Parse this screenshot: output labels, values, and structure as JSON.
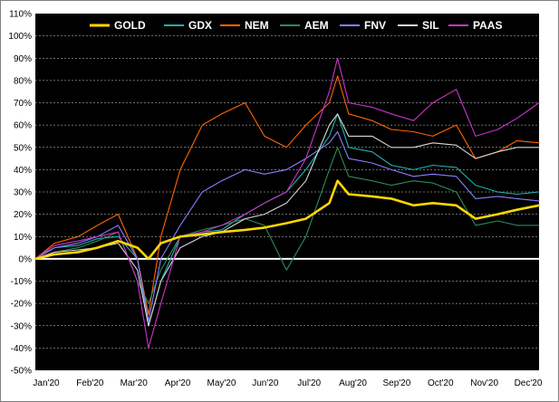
{
  "chart_data": {
    "type": "line",
    "title": "",
    "xlabel": "",
    "ylabel": "",
    "ylim": [
      -50,
      110
    ],
    "y_unit": "%",
    "y_ticks": [
      -50,
      -40,
      -30,
      -20,
      -10,
      0,
      10,
      20,
      30,
      40,
      50,
      60,
      70,
      80,
      90,
      100,
      110
    ],
    "y_tick_labels": [
      "-50%",
      "-40%",
      "-30%",
      "-20%",
      "-10%",
      "0%",
      "10%",
      "20%",
      "30%",
      "40%",
      "50%",
      "60%",
      "70%",
      "80%",
      "90%",
      "100%",
      "110%"
    ],
    "x_tick_labels": [
      "Jan'20",
      "Feb'20",
      "Mar'20",
      "Apr'20",
      "May'20",
      "Jun'20",
      "Jul'20",
      "Aug'20",
      "Sep'20",
      "Oct'20",
      "Nov'20",
      "Dec'20"
    ],
    "x": [
      "2020-01-01",
      "2020-01-15",
      "2020-02-01",
      "2020-02-15",
      "2020-03-01",
      "2020-03-15",
      "2020-03-23",
      "2020-04-01",
      "2020-04-15",
      "2020-05-01",
      "2020-05-15",
      "2020-06-01",
      "2020-06-15",
      "2020-07-01",
      "2020-07-15",
      "2020-08-01",
      "2020-08-07",
      "2020-08-15",
      "2020-09-01",
      "2020-09-15",
      "2020-10-01",
      "2020-10-15",
      "2020-11-01",
      "2020-11-15",
      "2020-12-01",
      "2020-12-15",
      "2020-12-31"
    ],
    "grid": true,
    "background": "#000000",
    "zero_line_color": "#ffffff",
    "legend_position": "top",
    "series": [
      {
        "name": "GOLD",
        "color": "#ffd700",
        "values": [
          0,
          2,
          3,
          5,
          8,
          5,
          0,
          7,
          10,
          11,
          12,
          13,
          14,
          16,
          18,
          25,
          35,
          29,
          28,
          27,
          24,
          25,
          24,
          18,
          20,
          22,
          24
        ]
      },
      {
        "name": "GDX",
        "color": "#20b2aa",
        "values": [
          0,
          5,
          6,
          9,
          10,
          0,
          -30,
          -10,
          10,
          12,
          13,
          20,
          25,
          30,
          40,
          55,
          65,
          50,
          48,
          42,
          40,
          42,
          41,
          33,
          30,
          29,
          30
        ]
      },
      {
        "name": "NEM",
        "color": "#ff6600",
        "values": [
          0,
          7,
          10,
          15,
          20,
          0,
          -25,
          10,
          40,
          60,
          65,
          70,
          55,
          50,
          60,
          70,
          82,
          65,
          62,
          58,
          57,
          55,
          60,
          45,
          48,
          53,
          52
        ]
      },
      {
        "name": "AEM",
        "color": "#2e8b57",
        "values": [
          0,
          3,
          5,
          8,
          12,
          -10,
          -20,
          -5,
          10,
          13,
          15,
          18,
          15,
          -5,
          10,
          40,
          50,
          37,
          35,
          33,
          35,
          34,
          30,
          15,
          17,
          15,
          15
        ]
      },
      {
        "name": "FNV",
        "color": "#8a7fff",
        "values": [
          0,
          5,
          7,
          10,
          15,
          0,
          -28,
          0,
          15,
          30,
          35,
          40,
          38,
          40,
          45,
          52,
          57,
          45,
          43,
          40,
          37,
          38,
          37,
          27,
          28,
          27,
          26
        ]
      },
      {
        "name": "SIL",
        "color": "#d8d8d8",
        "values": [
          0,
          3,
          4,
          5,
          7,
          -5,
          -30,
          -10,
          5,
          10,
          12,
          18,
          20,
          25,
          35,
          60,
          65,
          55,
          55,
          50,
          50,
          52,
          51,
          45,
          48,
          50,
          50
        ]
      },
      {
        "name": "PAAS",
        "color": "#cc33cc",
        "values": [
          0,
          6,
          8,
          10,
          12,
          -10,
          -40,
          -20,
          10,
          12,
          15,
          20,
          25,
          30,
          45,
          75,
          90,
          70,
          68,
          65,
          62,
          70,
          76,
          55,
          58,
          63,
          70
        ]
      }
    ]
  }
}
